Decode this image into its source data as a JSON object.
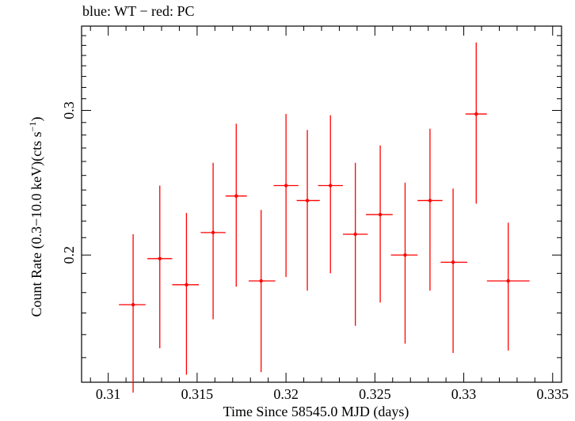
{
  "chart_data": {
    "type": "scatter",
    "title": "blue: WT − red: PC",
    "xlabel": "Time Since 58545.0 MJD (days)",
    "ylabel_main": "Count Rate (0.3−10.0 keV)(cts s",
    "ylabel_sup": "−1",
    "ylabel_close": ")",
    "xlim": [
      0.3085,
      0.3355
    ],
    "ylim": [
      0.14,
      0.38
    ],
    "ylog": true,
    "grid": false,
    "x_ticks": [
      {
        "value": 0.31,
        "label": "0.31"
      },
      {
        "value": 0.315,
        "label": "0.315"
      },
      {
        "value": 0.32,
        "label": "0.32"
      },
      {
        "value": 0.325,
        "label": "0.325"
      },
      {
        "value": 0.33,
        "label": "0.33"
      },
      {
        "value": 0.335,
        "label": "0.335"
      }
    ],
    "y_ticks": [
      {
        "value": 0.2,
        "label": "0.2"
      },
      {
        "value": 0.3,
        "label": "0.3"
      }
    ],
    "series": [
      {
        "color": "#ff0000",
        "points": [
          {
            "x": 0.3114,
            "xlo": 0.3106,
            "xhi": 0.3121,
            "y": 0.174,
            "ylo": 0.136,
            "yhi": 0.212
          },
          {
            "x": 0.3129,
            "xlo": 0.3122,
            "xhi": 0.3136,
            "y": 0.198,
            "ylo": 0.154,
            "yhi": 0.243
          },
          {
            "x": 0.3144,
            "xlo": 0.3136,
            "xhi": 0.3151,
            "y": 0.184,
            "ylo": 0.143,
            "yhi": 0.225
          },
          {
            "x": 0.3159,
            "xlo": 0.3152,
            "xhi": 0.3166,
            "y": 0.213,
            "ylo": 0.167,
            "yhi": 0.259
          },
          {
            "x": 0.3172,
            "xlo": 0.3166,
            "xhi": 0.3178,
            "y": 0.236,
            "ylo": 0.183,
            "yhi": 0.289
          },
          {
            "x": 0.3186,
            "xlo": 0.3179,
            "xhi": 0.3194,
            "y": 0.186,
            "ylo": 0.144,
            "yhi": 0.227
          },
          {
            "x": 0.32,
            "xlo": 0.3193,
            "xhi": 0.3207,
            "y": 0.243,
            "ylo": 0.188,
            "yhi": 0.297
          },
          {
            "x": 0.3212,
            "xlo": 0.3206,
            "xhi": 0.3219,
            "y": 0.233,
            "ylo": 0.181,
            "yhi": 0.284
          },
          {
            "x": 0.3225,
            "xlo": 0.3218,
            "xhi": 0.3232,
            "y": 0.243,
            "ylo": 0.19,
            "yhi": 0.296
          },
          {
            "x": 0.3239,
            "xlo": 0.3232,
            "xhi": 0.3246,
            "y": 0.212,
            "ylo": 0.164,
            "yhi": 0.259
          },
          {
            "x": 0.3253,
            "xlo": 0.3245,
            "xhi": 0.326,
            "y": 0.224,
            "ylo": 0.175,
            "yhi": 0.272
          },
          {
            "x": 0.3267,
            "xlo": 0.3259,
            "xhi": 0.3274,
            "y": 0.2,
            "ylo": 0.156,
            "yhi": 0.245
          },
          {
            "x": 0.3281,
            "xlo": 0.3274,
            "xhi": 0.3288,
            "y": 0.233,
            "ylo": 0.181,
            "yhi": 0.285
          },
          {
            "x": 0.3294,
            "xlo": 0.3287,
            "xhi": 0.3302,
            "y": 0.196,
            "ylo": 0.152,
            "yhi": 0.241
          },
          {
            "x": 0.3307,
            "xlo": 0.3301,
            "xhi": 0.3313,
            "y": 0.297,
            "ylo": 0.231,
            "yhi": 0.363
          },
          {
            "x": 0.3325,
            "xlo": 0.3313,
            "xhi": 0.3337,
            "y": 0.186,
            "ylo": 0.153,
            "yhi": 0.219
          }
        ]
      }
    ]
  }
}
